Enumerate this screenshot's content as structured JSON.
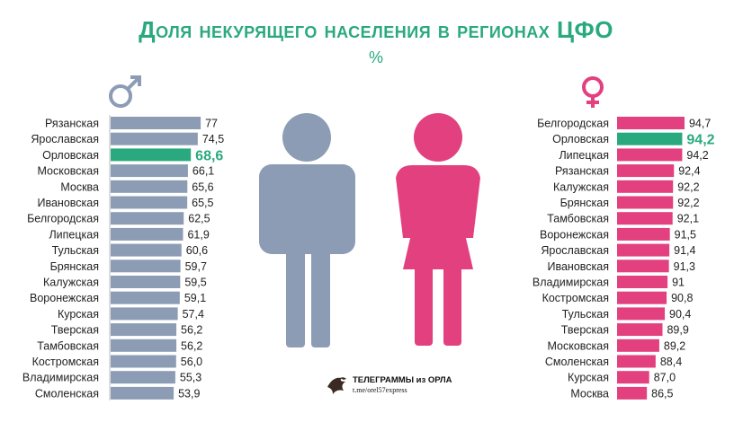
{
  "chart_data": [
    {
      "type": "bar",
      "orientation": "horizontal",
      "symbol": "♂",
      "categories": [
        "Рязанская",
        "Ярославская",
        "Орловская",
        "Московская",
        "Москва",
        "Ивановская",
        "Белгородская",
        "Липецкая",
        "Тульская",
        "Брянская",
        "Калужская",
        "Воронежская",
        "Курская",
        "Тверская",
        "Тамбовская",
        "Костромская",
        "Владимирская",
        "Смоленская"
      ],
      "values": [
        77,
        74.5,
        68.6,
        66.1,
        65.6,
        65.5,
        62.5,
        61.9,
        60.6,
        59.7,
        59.5,
        59.1,
        57.4,
        56.2,
        56.2,
        56.0,
        55.3,
        53.9
      ],
      "value_labels": [
        "77",
        "74,5",
        "68,6",
        "66,1",
        "65,6",
        "65,5",
        "62,5",
        "61,9",
        "60,6",
        "59,7",
        "59,5",
        "59,1",
        "57,4",
        "56,2",
        "56,2",
        "56,0",
        "55,3",
        "53,9"
      ],
      "highlight": "Орловская",
      "color": "#8c9cb4",
      "highlight_color": "#2aa97f"
    },
    {
      "type": "bar",
      "orientation": "horizontal",
      "symbol": "♀",
      "categories": [
        "Белгородская",
        "Орловская",
        "Липецкая",
        "Рязанская",
        "Калужская",
        "Брянская",
        "Тамбовская",
        "Воронежская",
        "Ярославская",
        "Ивановская",
        "Владимирская",
        "Костромская",
        "Тульская",
        "Тверская",
        "Московская",
        "Смоленская",
        "Курская",
        "Москва"
      ],
      "values": [
        94.7,
        94.2,
        94.2,
        92.4,
        92.2,
        92.2,
        92.1,
        91.5,
        91.4,
        91.3,
        91,
        90.8,
        90.4,
        89.9,
        89.2,
        88.4,
        87.0,
        86.5
      ],
      "value_labels": [
        "94,7",
        "94,2",
        "94,2",
        "92,4",
        "92,2",
        "92,2",
        "92,1",
        "91,5",
        "91,4",
        "91,3",
        "91",
        "90,8",
        "90,4",
        "89,9",
        "89,2",
        "88,4",
        "87,0",
        "86,5"
      ],
      "highlight": "Орловская",
      "color": "#e2407e",
      "highlight_color": "#2aa97f"
    }
  ],
  "title": "Доля некурящего населения в регионах ЦФО",
  "unit": "%",
  "colors": {
    "title": "#2aa97f",
    "male": "#8c9cb4",
    "female": "#e2407e",
    "highlight": "#2aa97f"
  },
  "icons": {
    "male": "male-figure-icon",
    "female": "female-figure-icon",
    "watermark": "eagle-logo-icon"
  },
  "watermark": {
    "name": "ТЕЛЕГРАММЫ из ОРЛА",
    "link": "t.me/orel57express"
  }
}
